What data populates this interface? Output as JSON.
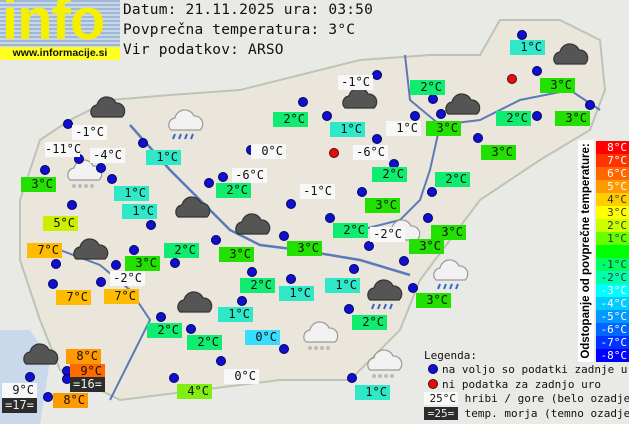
{
  "header": {
    "logo_text": "info",
    "logo_url": "www.informacije.si",
    "date_line": "Datum: 21.11.2025 ura: 03:50",
    "avg_line": "Povprečna temperatura: 3°C",
    "source_line": "Vir podatkov: ARSO"
  },
  "colors": {
    "c-1": "#2ee8c8",
    "c0": "#38dcff",
    "c1": "#2ee8c8",
    "c2": "#10ec70",
    "c3": "#22e000",
    "c4": "#80ee10",
    "c5": "#ccee00",
    "c7": "#ffbb00",
    "c8": "#ff9900",
    "c9": "#ff6a00",
    "station": "#1010cc",
    "nodata": "#dd1111"
  },
  "stations": [
    {
      "t": "1°C",
      "c": "c1"
    },
    {
      "t": "-1°C",
      "c": "w"
    },
    {
      "t": "2°C",
      "c": "c2"
    },
    {
      "t": "2°C",
      "c": "c2"
    },
    {
      "t": "1°C",
      "c": "c1"
    },
    {
      "t": "1°C",
      "c": "w"
    },
    {
      "t": "3°C",
      "c": "c3"
    },
    {
      "t": "2°C",
      "c": "c2"
    },
    {
      "t": "3°C",
      "c": "c3"
    },
    {
      "t": "3°C",
      "c": "c3"
    },
    {
      "t": "-6°C",
      "c": "w"
    },
    {
      "t": "3°C",
      "c": "c3"
    },
    {
      "t": "2°C",
      "c": "c2"
    },
    {
      "t": "2°C",
      "c": "c2"
    },
    {
      "t": "-1°C",
      "c": "w"
    },
    {
      "t": "3°C",
      "c": "c3"
    },
    {
      "t": "2°C",
      "c": "c2"
    },
    {
      "t": "-2°C",
      "c": "w"
    },
    {
      "t": "3°C",
      "c": "c3"
    },
    {
      "t": "3°C",
      "c": "c3"
    },
    {
      "t": "3°C",
      "c": "c3"
    },
    {
      "t": "3°C",
      "c": "c3"
    },
    {
      "t": "-1°C",
      "c": "w"
    },
    {
      "t": "-11°C",
      "c": "w"
    },
    {
      "t": "-4°C",
      "c": "w"
    },
    {
      "t": "1°C",
      "c": "c1"
    },
    {
      "t": "0°C",
      "c": "w"
    },
    {
      "t": "-6°C",
      "c": "w"
    },
    {
      "t": "2°C",
      "c": "c2"
    },
    {
      "t": "3°C",
      "c": "c3"
    },
    {
      "t": "1°C",
      "c": "c1"
    },
    {
      "t": "1°C",
      "c": "c1"
    },
    {
      "t": "5°C",
      "c": "c5"
    },
    {
      "t": "7°C",
      "c": "c7"
    },
    {
      "t": "2°C",
      "c": "c2"
    },
    {
      "t": "3°C",
      "c": "c3"
    },
    {
      "t": "3°C",
      "c": "c3"
    },
    {
      "t": "-2°C",
      "c": "w"
    },
    {
      "t": "7°C",
      "c": "c7"
    },
    {
      "t": "7°C",
      "c": "c7"
    },
    {
      "t": "2°C",
      "c": "c2"
    },
    {
      "t": "1°C",
      "c": "c1"
    },
    {
      "t": "1°C",
      "c": "c1"
    },
    {
      "t": "1°C",
      "c": "c1"
    },
    {
      "t": "2°C",
      "c": "c2"
    },
    {
      "t": "2°C",
      "c": "c2"
    },
    {
      "t": "0°C",
      "c": "c0"
    },
    {
      "t": "2°C",
      "c": "c2"
    },
    {
      "t": "0°C",
      "c": "w"
    },
    {
      "t": "4°C",
      "c": "c4"
    },
    {
      "t": "1°C",
      "c": "c1"
    },
    {
      "t": "8°C",
      "c": "c8"
    },
    {
      "t": "9°C",
      "c": "c9"
    },
    {
      "t": "=16=",
      "c": "sea"
    },
    {
      "t": "9°C",
      "c": "w"
    },
    {
      "t": "=17=",
      "c": "sea"
    },
    {
      "t": "8°C",
      "c": "c8"
    }
  ],
  "weather_icons": [
    "cloudy",
    "rain",
    "snow",
    "cloudy",
    "cloudy",
    "cloudy",
    "cloudy",
    "cloudy",
    "snow",
    "rain",
    "snow",
    "cloudy",
    "cloudy",
    "cloudy",
    "partly-cloudy",
    "rain"
  ],
  "scale": {
    "title": "Odstopanje od povprečne temperature:",
    "steps": [
      {
        "t": "8°C",
        "c": "#ff0000"
      },
      {
        "t": "7°C",
        "c": "#ff3300"
      },
      {
        "t": "6°C",
        "c": "#ff6600"
      },
      {
        "t": "5°C",
        "c": "#ff9900"
      },
      {
        "t": "4°C",
        "c": "#ffcc00"
      },
      {
        "t": "3°C",
        "c": "#ffff00"
      },
      {
        "t": "2°C",
        "c": "#ccff00"
      },
      {
        "t": "1°C",
        "c": "#66ff00"
      },
      {
        "t": "",
        "c": "#00ff00"
      },
      {
        "t": "-1°C",
        "c": "#00ff66"
      },
      {
        "t": "-2°C",
        "c": "#00ffaa"
      },
      {
        "t": "-3°C",
        "c": "#00ffff"
      },
      {
        "t": "-4°C",
        "c": "#00ccff"
      },
      {
        "t": "-5°C",
        "c": "#0099ff"
      },
      {
        "t": "-6°C",
        "c": "#0066ff"
      },
      {
        "t": "-7°C",
        "c": "#0033ff"
      },
      {
        "t": "-8°C",
        "c": "#0000ff"
      }
    ]
  },
  "legend": {
    "title": "Legenda:",
    "available": "na voljo so podatki zadnje ure",
    "nodata": "ni podatka za zadnjo uro",
    "mountain_sample": "25°C",
    "mountain": "hribi / gore (belo ozadje)",
    "sea_sample": "=25=",
    "sea": "temp. morja (temno ozadje)"
  }
}
